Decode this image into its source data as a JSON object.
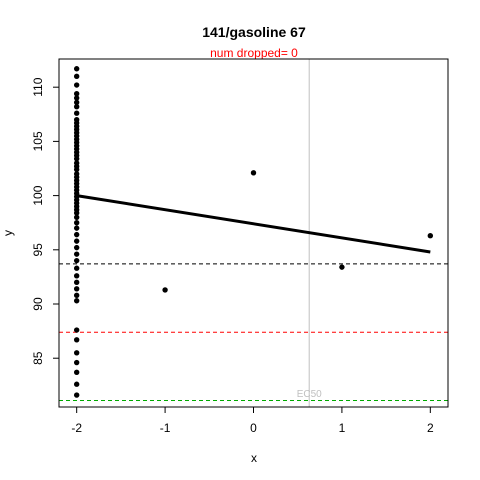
{
  "chart_data": {
    "type": "scatter",
    "title": "141/gasoline 67",
    "subtitle": "num dropped= 0",
    "xlabel": "x",
    "ylabel": "y",
    "xlim": [
      -2.2,
      2.2
    ],
    "ylim": [
      80.5,
      112.6
    ],
    "x_ticks": [
      -2,
      -1,
      0,
      1,
      2
    ],
    "x_tick_labels": [
      "-2",
      "-1",
      "0",
      "1",
      "2"
    ],
    "y_ticks": [
      85,
      90,
      95,
      100,
      105,
      110
    ],
    "y_tick_labels": [
      "85",
      "90",
      "95",
      "100",
      "105",
      "110"
    ],
    "points": [
      [
        -2,
        111.7
      ],
      [
        -2,
        111.0
      ],
      [
        -2,
        110.2
      ],
      [
        -2,
        109.4
      ],
      [
        -2,
        109.0
      ],
      [
        -2,
        108.6
      ],
      [
        -2,
        108.2
      ],
      [
        -2,
        107.6
      ],
      [
        -2,
        107.0
      ],
      [
        -2,
        106.7
      ],
      [
        -2,
        106.4
      ],
      [
        -2,
        106.1
      ],
      [
        -2,
        105.8
      ],
      [
        -2,
        105.5
      ],
      [
        -2,
        105.2
      ],
      [
        -2,
        104.9
      ],
      [
        -2,
        104.6
      ],
      [
        -2,
        104.3
      ],
      [
        -2,
        104.0
      ],
      [
        -2,
        103.7
      ],
      [
        -2,
        103.4
      ],
      [
        -2,
        103.0
      ],
      [
        -2,
        102.7
      ],
      [
        -2,
        102.4
      ],
      [
        -2,
        102.0
      ],
      [
        -2,
        101.7
      ],
      [
        -2,
        101.4
      ],
      [
        -2,
        101.1
      ],
      [
        -2,
        100.8
      ],
      [
        -2,
        100.5
      ],
      [
        -2,
        100.2
      ],
      [
        -2,
        99.9
      ],
      [
        -2,
        99.6
      ],
      [
        -2,
        99.3
      ],
      [
        -2,
        99.0
      ],
      [
        -2,
        98.7
      ],
      [
        -2,
        98.4
      ],
      [
        -2,
        98.0
      ],
      [
        -2,
        97.5
      ],
      [
        -2,
        97.0
      ],
      [
        -2,
        96.4
      ],
      [
        -2,
        95.8
      ],
      [
        -2,
        95.2
      ],
      [
        -2,
        94.6
      ],
      [
        -2,
        94.0
      ],
      [
        -2,
        93.3
      ],
      [
        -2,
        92.6
      ],
      [
        -2,
        92.0
      ],
      [
        -2,
        91.4
      ],
      [
        -2,
        90.8
      ],
      [
        -2,
        90.3
      ],
      [
        -2,
        87.6
      ],
      [
        -2,
        86.7
      ],
      [
        -2,
        85.5
      ],
      [
        -2,
        84.6
      ],
      [
        -2,
        83.7
      ],
      [
        -2,
        82.6
      ],
      [
        -2,
        81.6
      ],
      [
        -1,
        91.3
      ],
      [
        0,
        102.1
      ],
      [
        1,
        93.4
      ],
      [
        2,
        96.3
      ]
    ],
    "fit_line": {
      "x": [
        -2,
        2
      ],
      "y": [
        100.0,
        94.8
      ]
    },
    "hlines": [
      {
        "y": 93.7,
        "color": "#000000",
        "style": "dashed"
      },
      {
        "y": 87.4,
        "color": "#ff0000",
        "style": "dashed"
      },
      {
        "y": 81.1,
        "color": "#00aa00",
        "style": "dashed"
      }
    ],
    "vline": {
      "x": 0.63,
      "color": "#c0c0c0",
      "label": "EC50"
    },
    "colors": {
      "points": "#000000",
      "fit": "#000000",
      "subtitle": "#ff0000"
    }
  }
}
